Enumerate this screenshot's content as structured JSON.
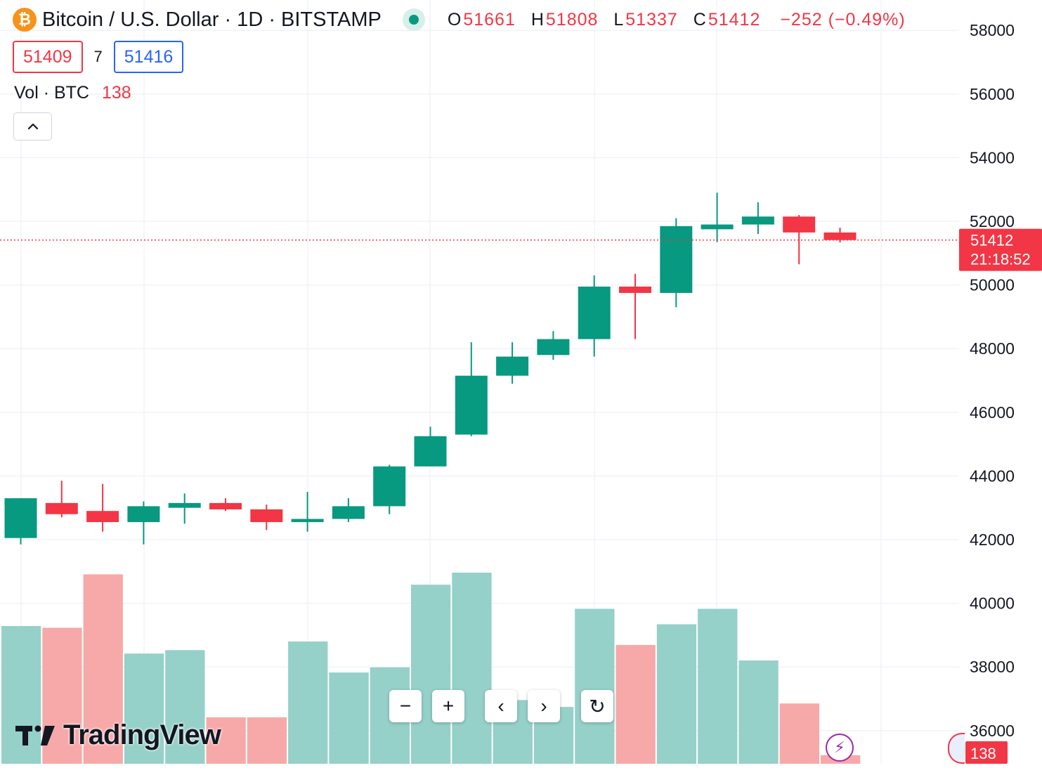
{
  "header": {
    "coin_symbol": "₿",
    "title": "Bitcoin / U.S. Dollar · 1D · BITSTAMP",
    "ohlc": {
      "o_label": "O",
      "o_value": "51661",
      "h_label": "H",
      "h_value": "51808",
      "l_label": "L",
      "l_value": "51337",
      "c_label": "C",
      "c_value": "51412",
      "change": "−252 (−0.49%)"
    }
  },
  "trade": {
    "sell_price": "51409",
    "spread": "7",
    "buy_price": "51416"
  },
  "volume_legend": {
    "label": "Vol · BTC",
    "value": "138"
  },
  "controls": {
    "collapse_icon": "chevron-up-icon",
    "zoom_out": "−",
    "zoom_in": "+",
    "scroll_left": "‹",
    "scroll_right": "›",
    "reset": "↻"
  },
  "branding": {
    "logo_text": "TradingView"
  },
  "last_price_tag": {
    "price": "51412",
    "countdown": "21:18:52"
  },
  "volume_tag": "138",
  "colors": {
    "up": "#089981",
    "down": "#f23645",
    "vol_up": "#95d0c9",
    "vol_down": "#f6a9a8",
    "grid": "#f0f3fa"
  },
  "chart_data": {
    "type": "candlestick",
    "title": "Bitcoin / U.S. Dollar · 1D · BITSTAMP",
    "y_axis_ticks": [
      58000,
      56000,
      54000,
      52000,
      50000,
      48000,
      46000,
      44000,
      42000,
      40000,
      38000,
      36000
    ],
    "ylim": [
      35000,
      58800
    ],
    "grid": true,
    "last_price": 51412,
    "candles": [
      {
        "o": 42050,
        "h": 43300,
        "l": 41850,
        "c": 43300
      },
      {
        "o": 43150,
        "h": 43850,
        "l": 42700,
        "c": 42800
      },
      {
        "o": 42900,
        "h": 43750,
        "l": 42250,
        "c": 42550
      },
      {
        "o": 42550,
        "h": 43200,
        "l": 41850,
        "c": 43050
      },
      {
        "o": 43000,
        "h": 43450,
        "l": 42500,
        "c": 43150
      },
      {
        "o": 43150,
        "h": 43300,
        "l": 42900,
        "c": 42950
      },
      {
        "o": 42950,
        "h": 43100,
        "l": 42300,
        "c": 42550
      },
      {
        "o": 42550,
        "h": 43500,
        "l": 42250,
        "c": 42650
      },
      {
        "o": 42650,
        "h": 43300,
        "l": 42550,
        "c": 43050
      },
      {
        "o": 43050,
        "h": 44350,
        "l": 42800,
        "c": 44300
      },
      {
        "o": 44300,
        "h": 45550,
        "l": 44300,
        "c": 45250
      },
      {
        "o": 45300,
        "h": 48200,
        "l": 45250,
        "c": 47150
      },
      {
        "o": 47150,
        "h": 48200,
        "l": 46900,
        "c": 47750
      },
      {
        "o": 47800,
        "h": 48550,
        "l": 47650,
        "c": 48300
      },
      {
        "o": 48300,
        "h": 50300,
        "l": 47750,
        "c": 49950
      },
      {
        "o": 49950,
        "h": 50350,
        "l": 48300,
        "c": 49750
      },
      {
        "o": 49750,
        "h": 52100,
        "l": 49300,
        "c": 51850
      },
      {
        "o": 51750,
        "h": 52900,
        "l": 51350,
        "c": 51900
      },
      {
        "o": 51900,
        "h": 52600,
        "l": 51600,
        "c": 52150
      },
      {
        "o": 52150,
        "h": 52200,
        "l": 50650,
        "c": 51650
      },
      {
        "o": 51650,
        "h": 51800,
        "l": 51337,
        "c": 51412
      }
    ],
    "volume": {
      "values": [
        40,
        39.5,
        55,
        32,
        33,
        13.5,
        13.5,
        35.5,
        26.5,
        28,
        52,
        55.5,
        18.5,
        16.5,
        45,
        34.5,
        40.5,
        45,
        30,
        17.5,
        2.5
      ],
      "directions": [
        "up",
        "down",
        "down",
        "up",
        "up",
        "down",
        "down",
        "up",
        "up",
        "up",
        "up",
        "up",
        "up",
        "up",
        "up",
        "down",
        "up",
        "up",
        "up",
        "down",
        "down"
      ]
    }
  }
}
